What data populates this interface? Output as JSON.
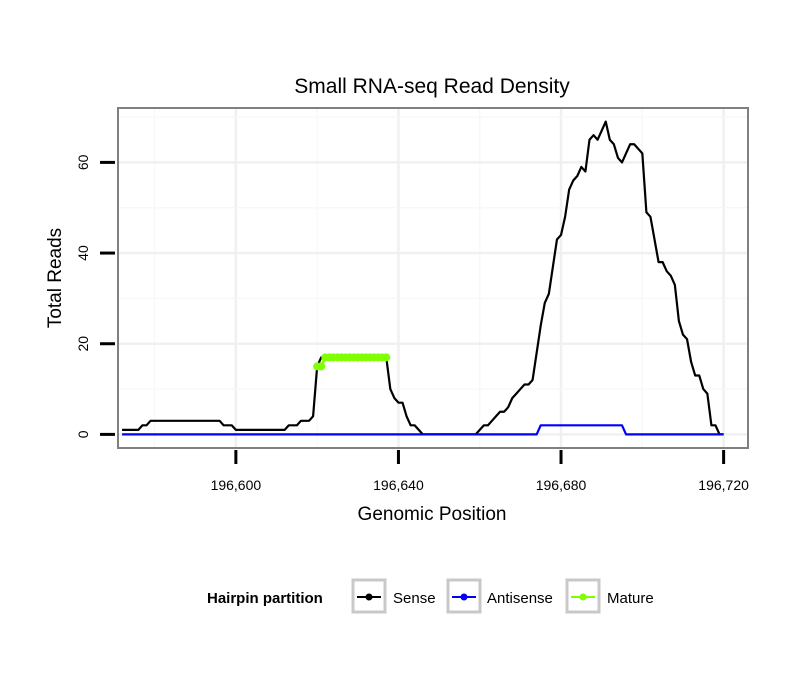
{
  "chart_data": {
    "type": "line",
    "title": "Small RNA-seq Read Density",
    "xlabel": "Genomic Position",
    "ylabel": "Total Reads",
    "xlim": [
      196571,
      196726
    ],
    "ylim": [
      -3,
      72
    ],
    "x_ticks": [
      196600,
      196640,
      196680,
      196720
    ],
    "x_tick_labels": [
      "196,600",
      "196,640",
      "196,680",
      "196,720"
    ],
    "y_ticks": [
      0,
      20,
      40,
      60
    ],
    "y_tick_labels": [
      "0",
      "20",
      "40",
      "60"
    ],
    "grid": true,
    "legend": {
      "title": "Hairpin partition",
      "position": "bottom",
      "entries": [
        "Sense",
        "Antisense",
        "Mature"
      ]
    },
    "series": [
      {
        "name": "Sense",
        "color": "#000000",
        "x": [
          196572,
          196576,
          196577,
          196578,
          196579,
          196580,
          196590,
          196596,
          196597,
          196599,
          196600,
          196612,
          196613,
          196615,
          196616,
          196618,
          196619,
          196620,
          196621,
          196622,
          196624,
          196628,
          196632,
          196636,
          196637,
          196638,
          196639,
          196640,
          196641,
          196642,
          196643,
          196644,
          196645,
          196646,
          196650,
          196655,
          196659,
          196660,
          196661,
          196662,
          196663,
          196664,
          196665,
          196666,
          196667,
          196668,
          196669,
          196670,
          196671,
          196672,
          196673,
          196674,
          196675,
          196676,
          196677,
          196678,
          196679,
          196680,
          196681,
          196682,
          196683,
          196684,
          196685,
          196686,
          196687,
          196688,
          196689,
          196690,
          196691,
          196692,
          196693,
          196694,
          196695,
          196696,
          196697,
          196698,
          196699,
          196700,
          196701,
          196702,
          196703,
          196704,
          196705,
          196706,
          196707,
          196708,
          196709,
          196710,
          196711,
          196712,
          196713,
          196714,
          196715,
          196716,
          196717,
          196718,
          196719,
          196720
        ],
        "y": [
          1,
          1,
          2,
          2,
          3,
          3,
          3,
          3,
          2,
          2,
          1,
          1,
          2,
          2,
          3,
          3,
          4,
          15,
          17,
          17,
          17,
          17,
          17,
          17,
          17,
          10,
          8,
          7,
          7,
          4,
          2,
          2,
          1,
          0,
          0,
          0,
          0,
          1,
          2,
          2,
          3,
          4,
          5,
          5,
          6,
          8,
          9,
          10,
          11,
          11,
          12,
          18,
          24,
          29,
          31,
          37,
          43,
          44,
          48,
          54,
          56,
          57,
          59,
          58,
          65,
          66,
          65,
          67,
          69,
          65,
          64,
          61,
          60,
          62,
          64,
          64,
          63,
          62,
          49,
          48,
          43,
          38,
          38,
          36,
          35,
          33,
          25,
          22,
          21,
          16,
          13,
          13,
          10,
          9,
          2,
          2,
          0,
          0
        ]
      },
      {
        "name": "Antisense",
        "color": "#0000ff",
        "x": [
          196572,
          196674,
          196675,
          196695,
          196696,
          196720
        ],
        "y": [
          0,
          0,
          2,
          2,
          0,
          0
        ]
      },
      {
        "name": "Mature",
        "color": "#7fff00",
        "x": [
          196620,
          196621,
          196622,
          196623,
          196624,
          196625,
          196626,
          196627,
          196628,
          196629,
          196630,
          196631,
          196632,
          196633,
          196634,
          196635,
          196636,
          196637
        ],
        "y": [
          15,
          15,
          17,
          17,
          17,
          17,
          17,
          17,
          17,
          17,
          17,
          17,
          17,
          17,
          17,
          17,
          17,
          17
        ]
      }
    ]
  }
}
